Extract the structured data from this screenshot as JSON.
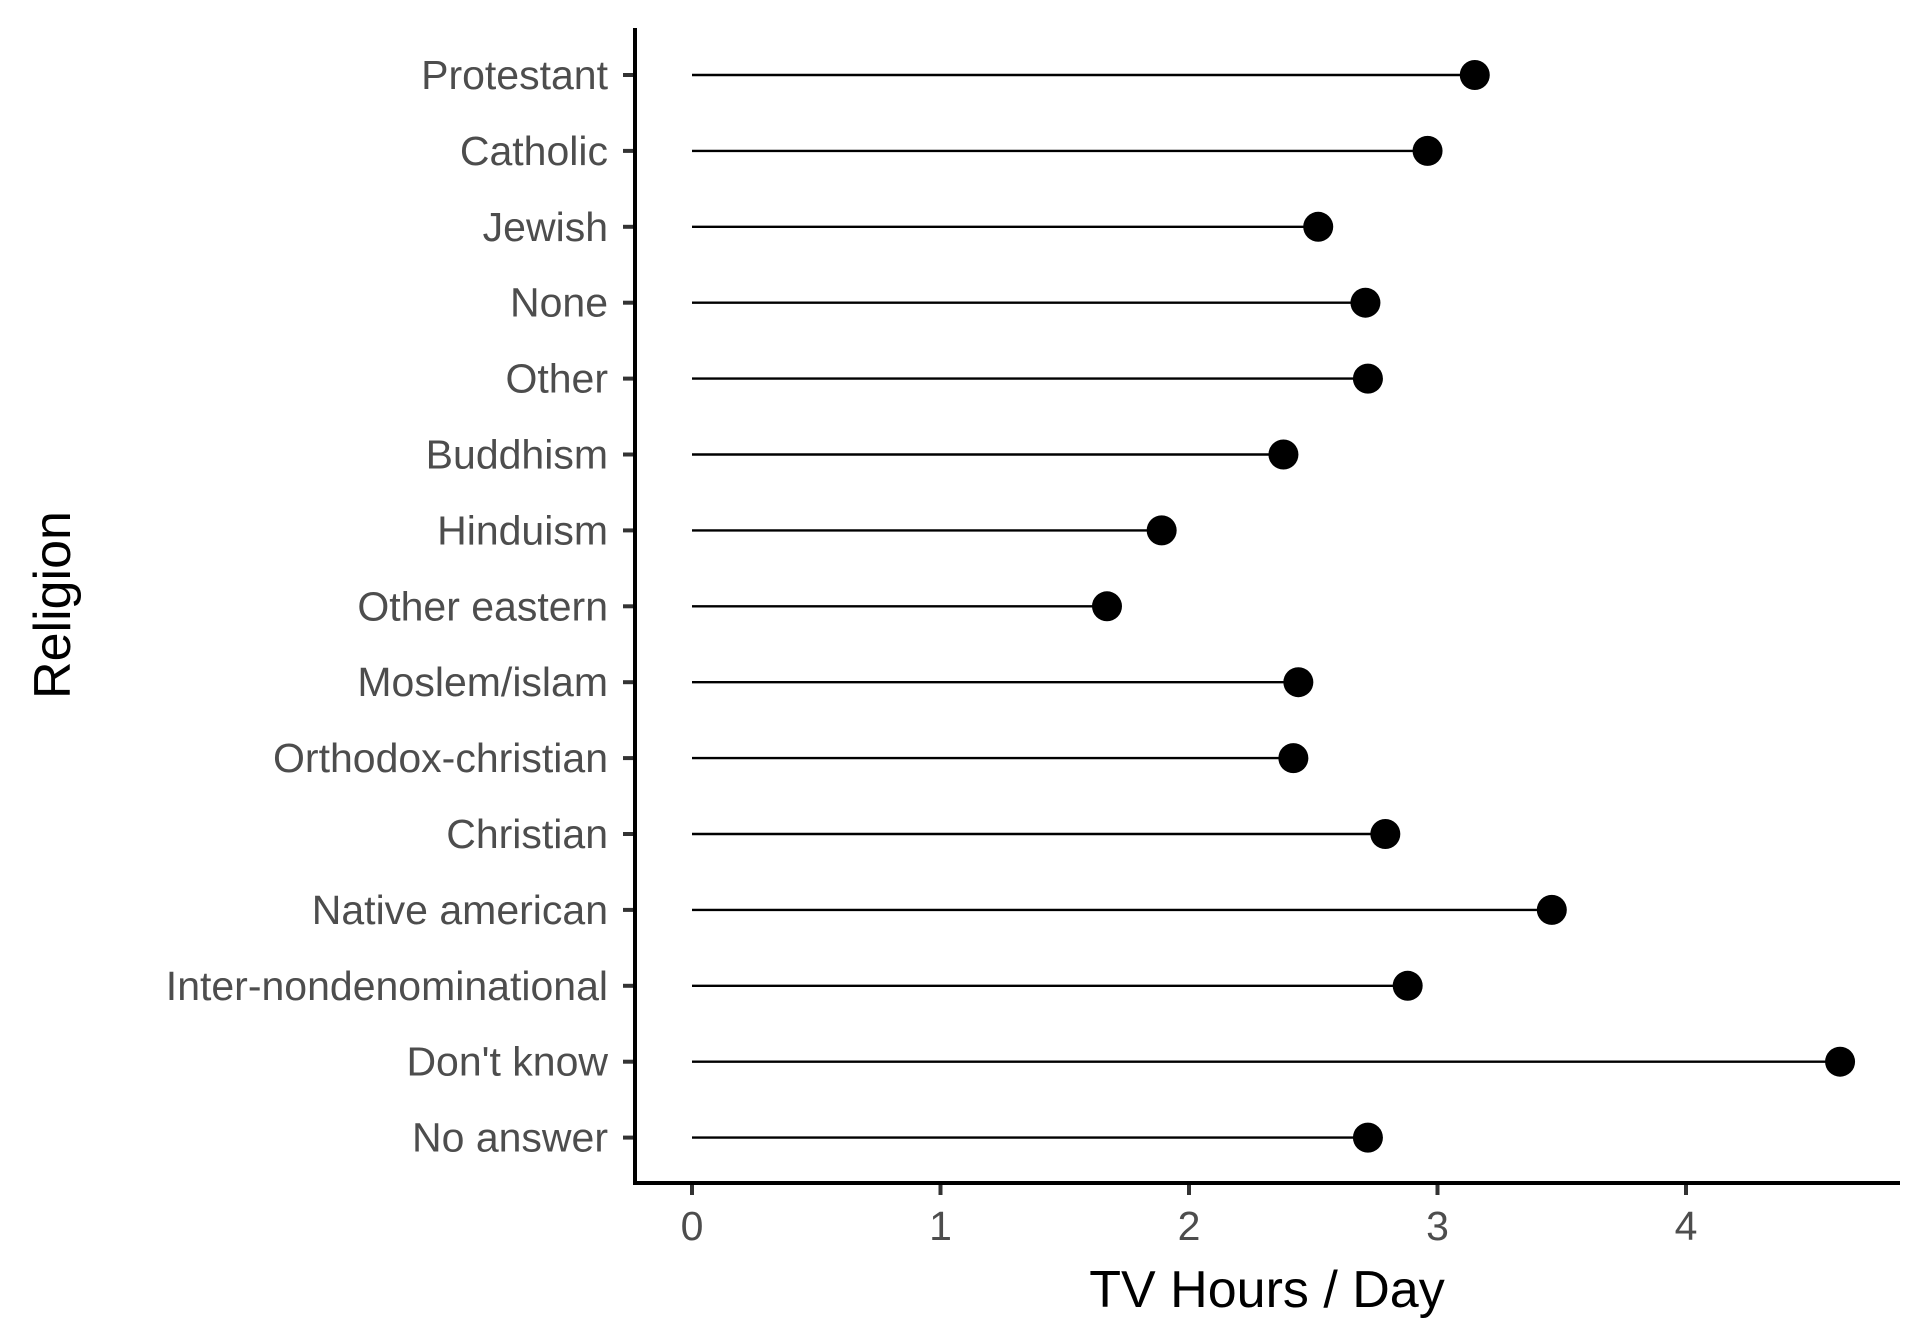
{
  "chart_data": {
    "type": "lollipop",
    "xlabel": "TV Hours / Day",
    "ylabel": "Religion",
    "xlim": [
      -0.23,
      4.87
    ],
    "x_ticks": [
      0,
      1,
      2,
      3,
      4
    ],
    "grid": false,
    "categories": [
      "Protestant",
      "Catholic",
      "Jewish",
      "None",
      "Other",
      "Buddhism",
      "Hinduism",
      "Other eastern",
      "Moslem/islam",
      "Orthodox-christian",
      "Christian",
      "Native american",
      "Inter-nondenominational",
      "Don't know",
      "No answer"
    ],
    "values": [
      3.15,
      2.96,
      2.52,
      2.71,
      2.72,
      2.38,
      1.89,
      1.67,
      2.44,
      2.42,
      2.79,
      3.46,
      2.88,
      4.62,
      2.72
    ],
    "colors": {
      "marks": "#000000",
      "tick_labels": "#4d4d4d",
      "axis": "#000000"
    }
  }
}
